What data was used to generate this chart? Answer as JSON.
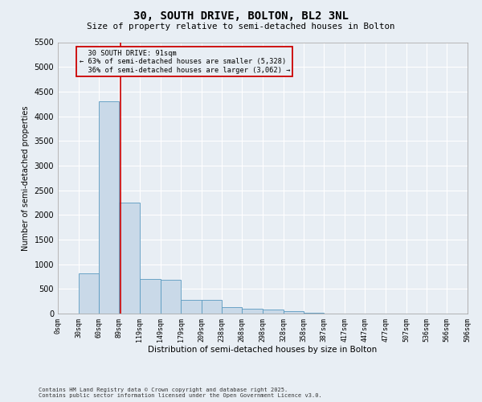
{
  "title": "30, SOUTH DRIVE, BOLTON, BL2 3NL",
  "subtitle": "Size of property relative to semi-detached houses in Bolton",
  "xlabel": "Distribution of semi-detached houses by size in Bolton",
  "ylabel": "Number of semi-detached properties",
  "bar_color": "#c9d9e8",
  "bar_edge_color": "#5a9ac0",
  "property_line_color": "#cc0000",
  "property_size": 91,
  "property_label": "30 SOUTH DRIVE: 91sqm",
  "smaller_pct": 63,
  "smaller_n": 5328,
  "larger_pct": 36,
  "larger_n": 3062,
  "bin_edges": [
    0,
    30,
    60,
    89,
    119,
    149,
    179,
    209,
    238,
    268,
    298,
    328,
    358,
    387,
    417,
    447,
    477,
    507,
    536,
    566,
    596
  ],
  "bin_labels": [
    "0sqm",
    "30sqm",
    "60sqm",
    "89sqm",
    "119sqm",
    "149sqm",
    "179sqm",
    "209sqm",
    "238sqm",
    "268sqm",
    "298sqm",
    "328sqm",
    "358sqm",
    "387sqm",
    "417sqm",
    "447sqm",
    "477sqm",
    "507sqm",
    "536sqm",
    "566sqm",
    "596sqm"
  ],
  "counts": [
    5,
    820,
    4300,
    2250,
    700,
    680,
    280,
    270,
    130,
    100,
    80,
    55,
    10,
    5,
    3,
    2,
    1,
    1,
    0,
    0
  ],
  "ylim": [
    0,
    5500
  ],
  "yticks": [
    0,
    500,
    1000,
    1500,
    2000,
    2500,
    3000,
    3500,
    4000,
    4500,
    5000,
    5500
  ],
  "background_color": "#e8eef4",
  "grid_color": "#ffffff",
  "footnote": "Contains HM Land Registry data © Crown copyright and database right 2025.\nContains public sector information licensed under the Open Government Licence v3.0."
}
